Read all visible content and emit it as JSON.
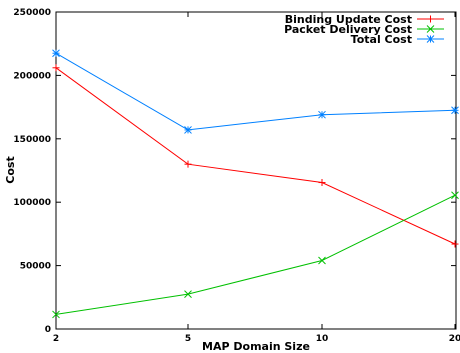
{
  "chart_data": {
    "type": "line",
    "categories": [
      "2",
      "5",
      "10",
      "20"
    ],
    "xlabel": "MAP Domain Size",
    "ylabel": "Cost",
    "ylim": [
      0,
      250000
    ],
    "yticks": [
      "0",
      "50000",
      "100000",
      "150000",
      "200000",
      "250000"
    ],
    "grid": false,
    "legend_position": "top-right",
    "series": [
      {
        "name": "Binding Update Cost",
        "color": "#ff0000",
        "marker": "plus",
        "values": [
          206000,
          130000,
          115500,
          67000
        ]
      },
      {
        "name": "Packet Delivery Cost",
        "color": "#00c000",
        "marker": "cross",
        "values": [
          11500,
          27500,
          54000,
          105500
        ]
      },
      {
        "name": "Total Cost",
        "color": "#0080ff",
        "marker": "star",
        "values": [
          217500,
          157000,
          169000,
          172500
        ]
      }
    ]
  }
}
